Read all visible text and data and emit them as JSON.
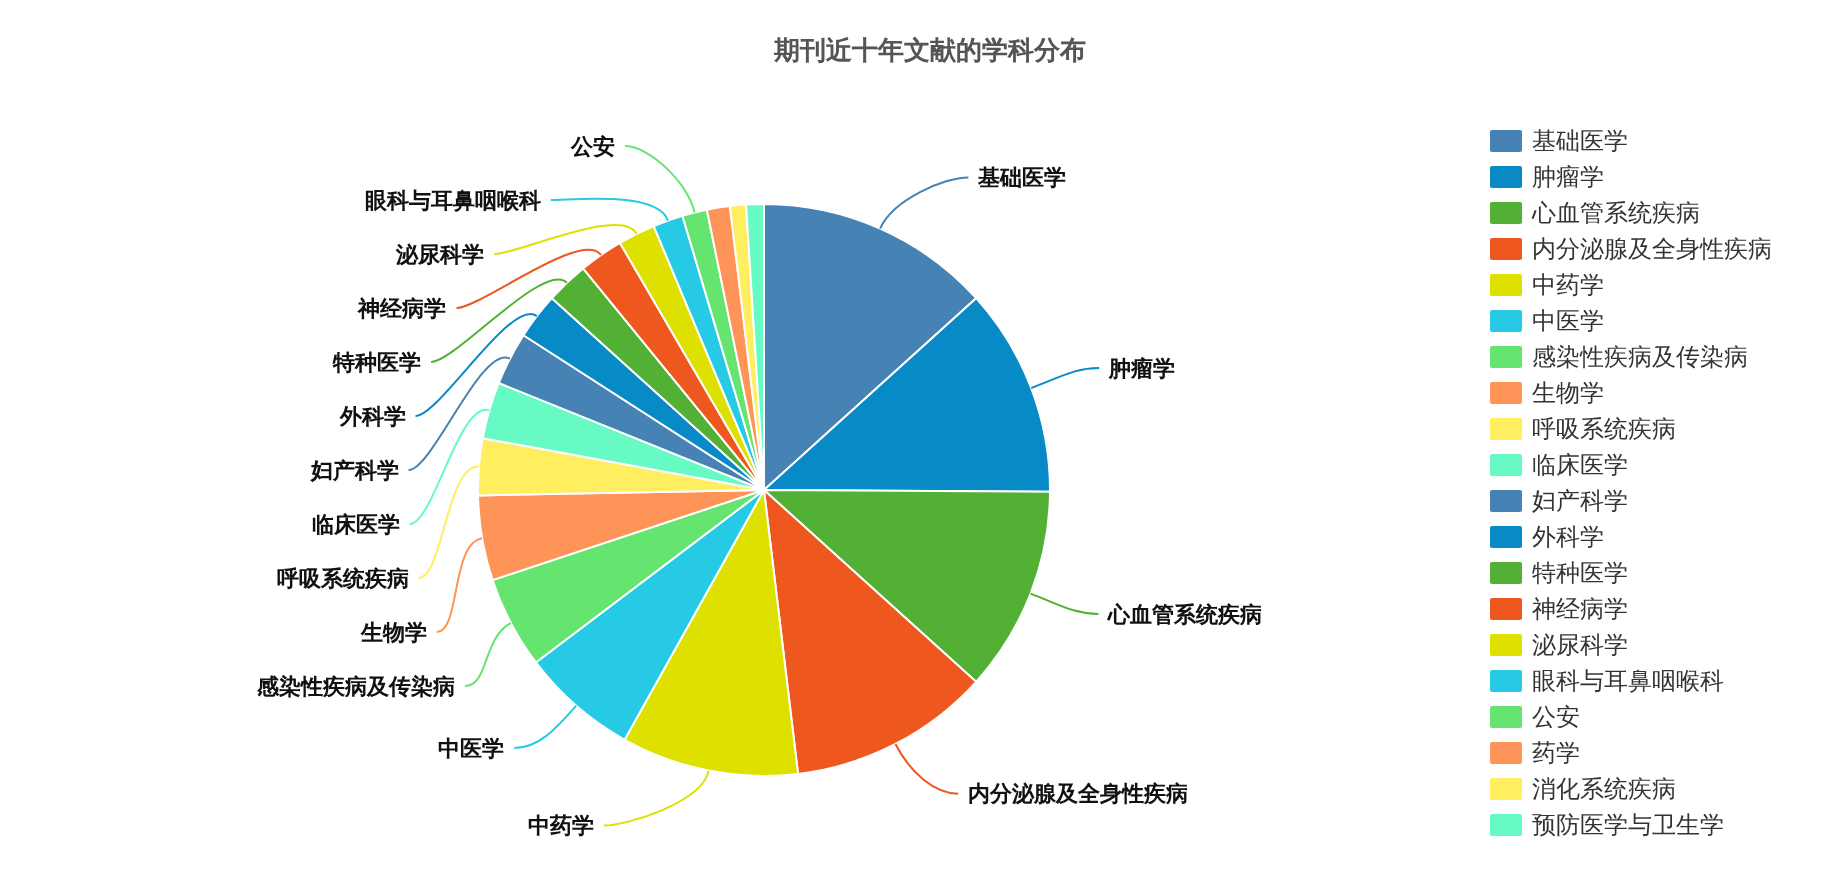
{
  "chart_data": {
    "type": "pie",
    "title": "期刊近十年文献的学科分布",
    "categories": [
      "基础医学",
      "肿瘤学",
      "心血管系统疾病",
      "内分泌腺及全身性疾病",
      "中药学",
      "中医学",
      "感染性疾病及传染病",
      "生物学",
      "呼吸系统疾病",
      "临床医学",
      "妇产科学",
      "外科学",
      "特种医学",
      "神经病学",
      "泌尿科学",
      "眼科与耳鼻咽喉科",
      "公安",
      "药学",
      "消化系统疾病",
      "预防医学与卫生学"
    ],
    "values": [
      13.3,
      11.8,
      11.6,
      11.4,
      10.0,
      6.6,
      5.2,
      4.8,
      3.2,
      3.2,
      3.0,
      2.6,
      2.4,
      2.5,
      2.1,
      1.7,
      1.4,
      1.3,
      0.9,
      1.0
    ],
    "colors": [
      "#4682b4",
      "#088ac6",
      "#52b034",
      "#ee581e",
      "#dee000",
      "#26cae4",
      "#65e470",
      "#ff9458",
      "#ffee60",
      "#68fac4",
      "#4682b4",
      "#088ac6",
      "#52b034",
      "#ee581e",
      "#dee000",
      "#26cae4",
      "#65e470",
      "#ff9458",
      "#ffee60",
      "#68fac4"
    ],
    "legend": "right"
  }
}
